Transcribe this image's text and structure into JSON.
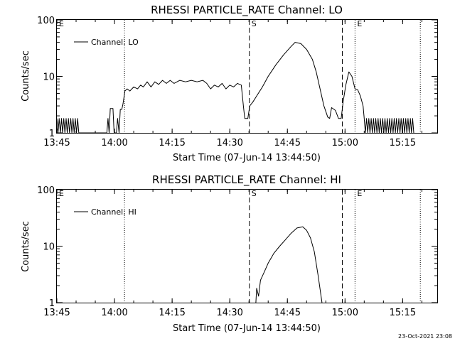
{
  "footer": {
    "timestamp": "23-Oct-2021 23:08"
  },
  "chart_data": [
    {
      "type": "line",
      "title": "RHESSI PARTICLE_RATE Channel: LO",
      "xlabel": "Start Time (07-Jun-14 13:44:50)",
      "ylabel": "Counts/sec",
      "ylog": true,
      "xlim": [
        "13:45",
        "15:24"
      ],
      "ylim": [
        1,
        100
      ],
      "x_ticks": [
        "13:45",
        "14:00",
        "14:15",
        "14:30",
        "14:45",
        "15:00",
        "15:15"
      ],
      "y_ticks": [
        "1",
        "10",
        "100"
      ],
      "legend": {
        "label": "Channel: LO",
        "position": "top-left"
      },
      "markers": [
        {
          "label": "",
          "time": "14:02.6",
          "style": "dotted"
        },
        {
          "label": "S",
          "time": "14:35.1",
          "style": "dashed"
        },
        {
          "label": "",
          "time": "14:59.3",
          "style": "dashed"
        },
        {
          "label": "E",
          "time": "15:02.6",
          "style": "dotted"
        },
        {
          "label": "",
          "time": "15:19.6",
          "style": "dotted"
        },
        {
          "label": "E",
          "time": "13:45.0",
          "style": "none"
        }
      ],
      "series": [
        {
          "name": "Channel: LO",
          "points": [
            [
              "13:45.0",
              1.8
            ],
            [
              "13:45.3",
              1
            ],
            [
              "13:45.6",
              1.8
            ],
            [
              "13:45.9",
              1
            ],
            [
              "13:46.2",
              1.8
            ],
            [
              "13:46.5",
              1
            ],
            [
              "13:46.8",
              1.8
            ],
            [
              "13:47.1",
              1
            ],
            [
              "13:47.4",
              1.8
            ],
            [
              "13:47.7",
              1
            ],
            [
              "13:48.0",
              1.8
            ],
            [
              "13:48.3",
              1
            ],
            [
              "13:48.6",
              1.8
            ],
            [
              "13:48.9",
              1
            ],
            [
              "13:49.2",
              1.8
            ],
            [
              "13:49.5",
              1
            ],
            [
              "13:49.8",
              1.8
            ],
            [
              "13:50.1",
              1
            ],
            [
              "13:50.4",
              1.8
            ],
            [
              "13:50.7",
              1
            ],
            [
              "13:58.0",
              1
            ],
            [
              "13:58.3",
              1.8
            ],
            [
              "13:58.6",
              1
            ],
            [
              "13:58.9",
              2.7
            ],
            [
              "13:59.6",
              2.7
            ],
            [
              "13:59.9",
              1
            ],
            [
              "14:00.5",
              1
            ],
            [
              "14:00.8",
              1.8
            ],
            [
              "14:01.2",
              1
            ],
            [
              "14:01.5",
              2.6
            ],
            [
              "14:01.9",
              2.6
            ],
            [
              "14:02.2",
              3.2
            ],
            [
              "14:02.7",
              5.5
            ],
            [
              "14:03.3",
              6
            ],
            [
              "14:04.0",
              5.5
            ],
            [
              "14:05.0",
              6.5
            ],
            [
              "14:06.0",
              6
            ],
            [
              "14:06.8",
              7
            ],
            [
              "14:07.5",
              6.5
            ],
            [
              "14:08.5",
              8
            ],
            [
              "14:09.5",
              6.5
            ],
            [
              "14:10.5",
              8
            ],
            [
              "14:11.5",
              7.2
            ],
            [
              "14:12.5",
              8.5
            ],
            [
              "14:13.5",
              7.5
            ],
            [
              "14:14.5",
              8.5
            ],
            [
              "14:15.5",
              7.5
            ],
            [
              "14:17.0",
              8.5
            ],
            [
              "14:18.5",
              8
            ],
            [
              "14:20.0",
              8.5
            ],
            [
              "14:21.5",
              8
            ],
            [
              "14:23.0",
              8.5
            ],
            [
              "14:24.0",
              7.5
            ],
            [
              "14:25.0",
              6
            ],
            [
              "14:26.0",
              7
            ],
            [
              "14:27.0",
              6.5
            ],
            [
              "14:28.0",
              7.5
            ],
            [
              "14:29.0",
              6
            ],
            [
              "14:30.0",
              7
            ],
            [
              "14:31.0",
              6.5
            ],
            [
              "14:32.0",
              7.5
            ],
            [
              "14:33.0",
              7
            ],
            [
              "14:33.6",
              2.8
            ],
            [
              "14:33.9",
              1.8
            ],
            [
              "14:34.7",
              1.8
            ],
            [
              "14:35.2",
              3
            ],
            [
              "14:36.0",
              3.5
            ],
            [
              "14:37.0",
              4.5
            ],
            [
              "14:38.5",
              6.5
            ],
            [
              "14:40.0",
              10
            ],
            [
              "14:42.0",
              16
            ],
            [
              "14:44.0",
              24
            ],
            [
              "14:46.0",
              34
            ],
            [
              "14:47.0",
              40
            ],
            [
              "14:48.5",
              38
            ],
            [
              "14:50.0",
              30
            ],
            [
              "14:51.5",
              20
            ],
            [
              "14:52.5",
              12
            ],
            [
              "14:53.5",
              6
            ],
            [
              "14:54.5",
              3
            ],
            [
              "14:55.5",
              1.9
            ],
            [
              "14:56.0",
              1.8
            ],
            [
              "14:56.5",
              2.8
            ],
            [
              "14:57.5",
              2.5
            ],
            [
              "14:58.3",
              1.8
            ],
            [
              "14:59.0",
              1.8
            ],
            [
              "14:59.5",
              3.5
            ],
            [
              "15:00.2",
              7
            ],
            [
              "15:01.0",
              12
            ],
            [
              "15:01.8",
              10
            ],
            [
              "15:02.6",
              6
            ],
            [
              "15:03.3",
              5.8
            ],
            [
              "15:04.0",
              4.5
            ],
            [
              "15:04.7",
              3
            ],
            [
              "15:05.0",
              1.8
            ],
            [
              "15:05.3",
              1
            ],
            [
              "15:05.6",
              1.8
            ],
            [
              "15:05.9",
              1
            ],
            [
              "15:06.2",
              1.8
            ],
            [
              "15:06.5",
              1
            ],
            [
              "15:06.8",
              1.8
            ],
            [
              "15:07.1",
              1
            ],
            [
              "15:07.4",
              1.8
            ],
            [
              "15:07.7",
              1
            ],
            [
              "15:08.0",
              1.8
            ],
            [
              "15:08.3",
              1
            ],
            [
              "15:08.6",
              1.8
            ],
            [
              "15:08.9",
              1
            ],
            [
              "15:09.2",
              1.8
            ],
            [
              "15:09.5",
              1
            ],
            [
              "15:09.8",
              1.8
            ],
            [
              "15:10.1",
              1
            ],
            [
              "15:10.4",
              1.8
            ],
            [
              "15:10.7",
              1
            ],
            [
              "15:11.0",
              1.8
            ],
            [
              "15:11.3",
              1
            ],
            [
              "15:11.6",
              1.8
            ],
            [
              "15:11.9",
              1
            ],
            [
              "15:12.2",
              1.8
            ],
            [
              "15:12.5",
              1
            ],
            [
              "15:12.8",
              1.8
            ],
            [
              "15:13.1",
              1
            ],
            [
              "15:13.4",
              1.8
            ],
            [
              "15:13.7",
              1
            ],
            [
              "15:14.0",
              1.8
            ],
            [
              "15:14.3",
              1
            ],
            [
              "15:14.6",
              1.8
            ],
            [
              "15:14.9",
              1
            ],
            [
              "15:15.2",
              1.8
            ],
            [
              "15:15.5",
              1
            ],
            [
              "15:15.8",
              1.8
            ],
            [
              "15:16.1",
              1
            ],
            [
              "15:16.4",
              1.8
            ],
            [
              "15:16.7",
              1
            ],
            [
              "15:17.0",
              1.8
            ],
            [
              "15:17.3",
              1
            ],
            [
              "15:17.6",
              1.8
            ],
            [
              "15:17.9",
              1
            ]
          ]
        }
      ]
    },
    {
      "type": "line",
      "title": "RHESSI PARTICLE_RATE Channel: HI",
      "xlabel": "Start Time (07-Jun-14 13:44:50)",
      "ylabel": "Counts/sec",
      "ylog": true,
      "xlim": [
        "13:45",
        "15:24"
      ],
      "ylim": [
        1,
        100
      ],
      "x_ticks": [
        "13:45",
        "14:00",
        "14:15",
        "14:30",
        "14:45",
        "15:00",
        "15:15"
      ],
      "y_ticks": [
        "1",
        "10",
        "100"
      ],
      "legend": {
        "label": "Channel: HI",
        "position": "top-left"
      },
      "markers": [
        {
          "label": "",
          "time": "14:02.6",
          "style": "dotted"
        },
        {
          "label": "S",
          "time": "14:35.1",
          "style": "dashed"
        },
        {
          "label": "",
          "time": "14:59.3",
          "style": "dashed"
        },
        {
          "label": "E",
          "time": "15:02.6",
          "style": "dotted"
        },
        {
          "label": "",
          "time": "15:19.6",
          "style": "dotted"
        },
        {
          "label": "E",
          "time": "13:45.0",
          "style": "none"
        }
      ],
      "series": [
        {
          "name": "Channel: HI",
          "points": [
            [
              "14:36.8",
              1
            ],
            [
              "14:37.0",
              1.8
            ],
            [
              "14:37.5",
              1.3
            ],
            [
              "14:38.0",
              2.5
            ],
            [
              "14:39.0",
              3.5
            ],
            [
              "14:40.0",
              5
            ],
            [
              "14:41.5",
              7.5
            ],
            [
              "14:43.0",
              10
            ],
            [
              "14:44.5",
              13
            ],
            [
              "14:46.0",
              17
            ],
            [
              "14:47.5",
              21
            ],
            [
              "14:49.0",
              22
            ],
            [
              "14:50.0",
              19
            ],
            [
              "14:51.0",
              14
            ],
            [
              "14:52.0",
              8
            ],
            [
              "14:53.0",
              3
            ],
            [
              "14:54.0",
              1
            ]
          ]
        }
      ]
    }
  ]
}
